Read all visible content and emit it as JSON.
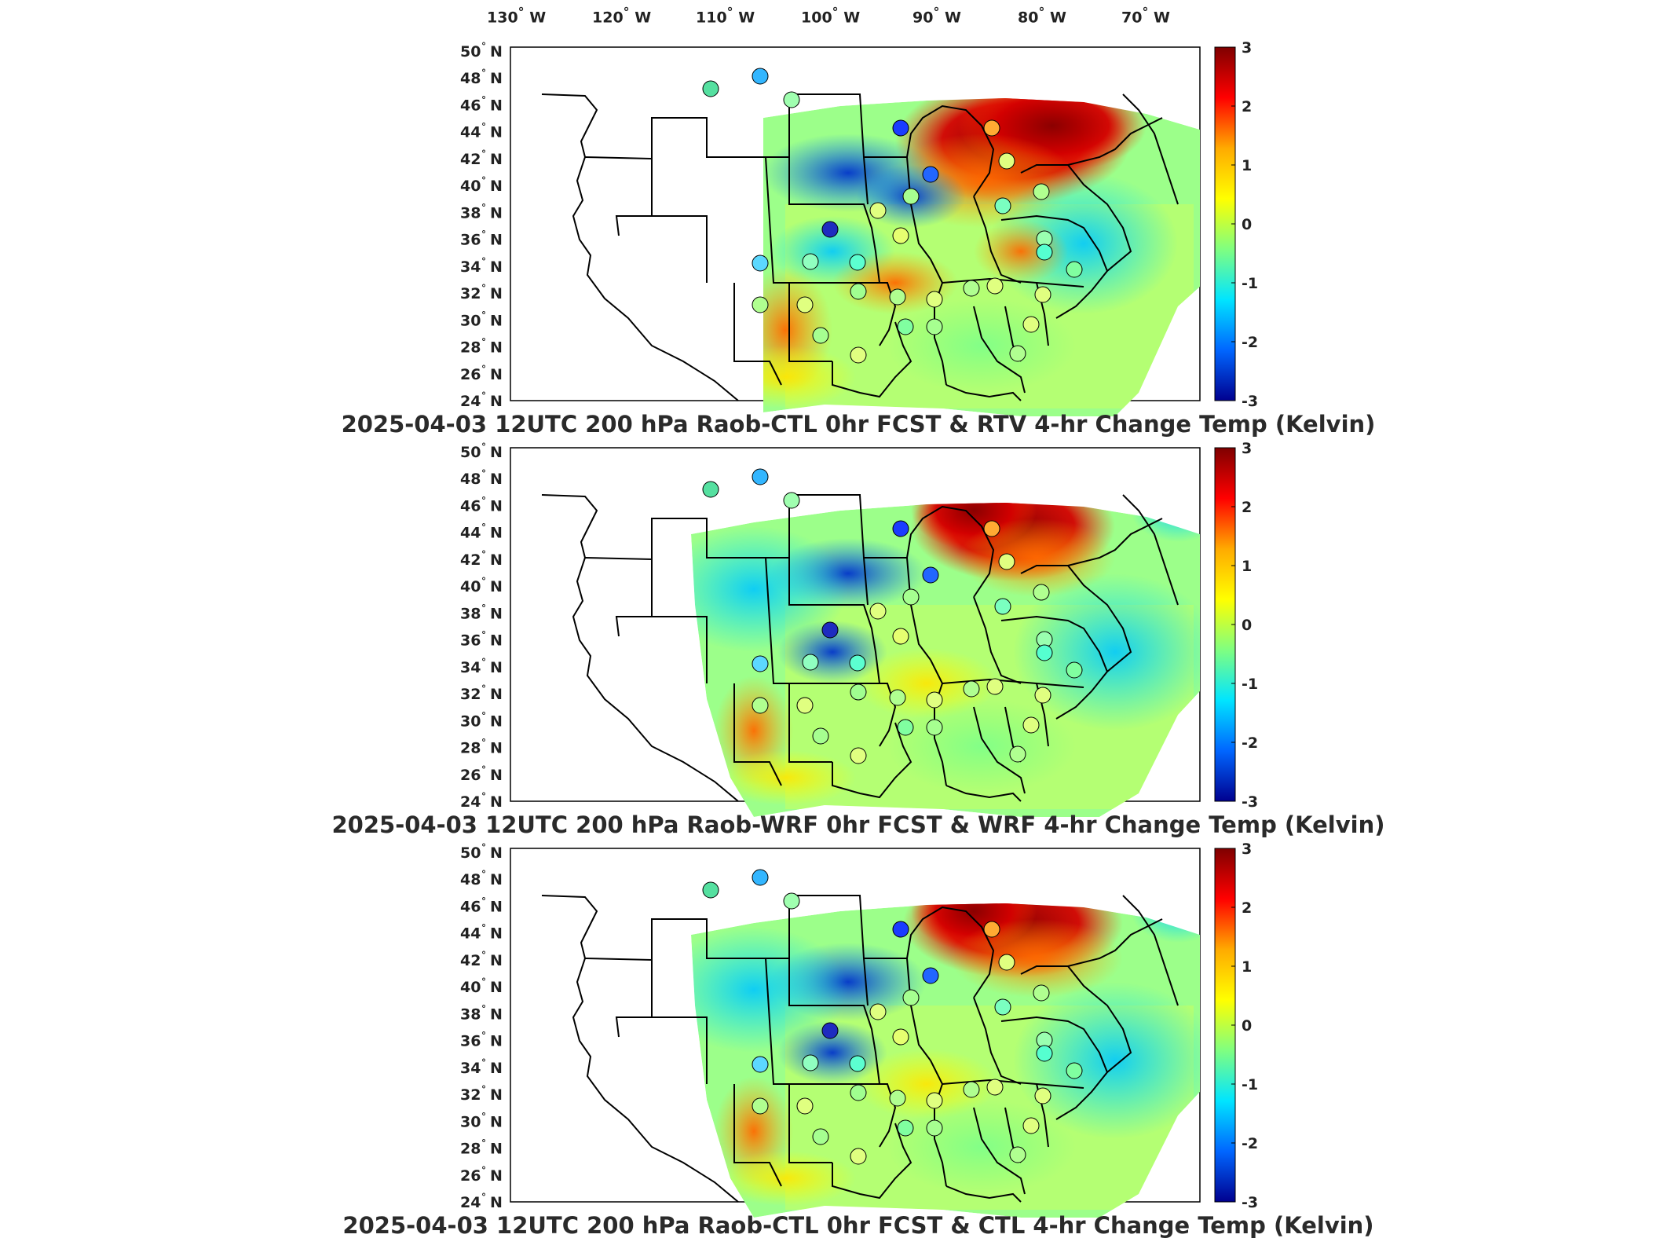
{
  "figure": {
    "top_longitude_labels": [
      "130",
      "120",
      "110",
      "100",
      "90",
      "80",
      "70"
    ],
    "lon_suffix": "W",
    "lat_suffix": "N",
    "degree_glyph": "°",
    "colorbar_ticks": [
      "3",
      "2",
      "1",
      "0",
      "-1",
      "-2",
      "-3"
    ],
    "colors": {
      "cbar_stops": [
        "#7f0000",
        "#ff0000",
        "#ffaa00",
        "#ffff00",
        "#80ff80",
        "#00e5ff",
        "#0066ff",
        "#00008f"
      ],
      "land": "#ffffff",
      "borders": "#000000"
    }
  },
  "panels": [
    {
      "title": "2025-04-03 12UTC 200 hPa Raob-CTL 0hr FCST & RTV 4-hr Change Temp (Kelvin)",
      "lat_labels": [
        "50",
        "48",
        "46",
        "44",
        "42",
        "40",
        "38",
        "36",
        "34",
        "32",
        "30",
        "28",
        "26",
        "24"
      ]
    },
    {
      "title": "2025-04-03 12UTC 200 hPa Raob-WRF 0hr FCST & WRF 4-hr Change Temp (Kelvin)",
      "lat_labels": [
        "50",
        "48",
        "46",
        "44",
        "42",
        "40",
        "38",
        "36",
        "34",
        "32",
        "30",
        "28",
        "26",
        "24"
      ]
    },
    {
      "title": "2025-04-03 12UTC 200 hPa Raob-CTL 0hr FCST & CTL 4-hr Change Temp (Kelvin)",
      "lat_labels": [
        "50",
        "48",
        "46",
        "44",
        "42",
        "40",
        "38",
        "36",
        "34",
        "32",
        "30",
        "28",
        "26",
        "24"
      ]
    }
  ]
}
